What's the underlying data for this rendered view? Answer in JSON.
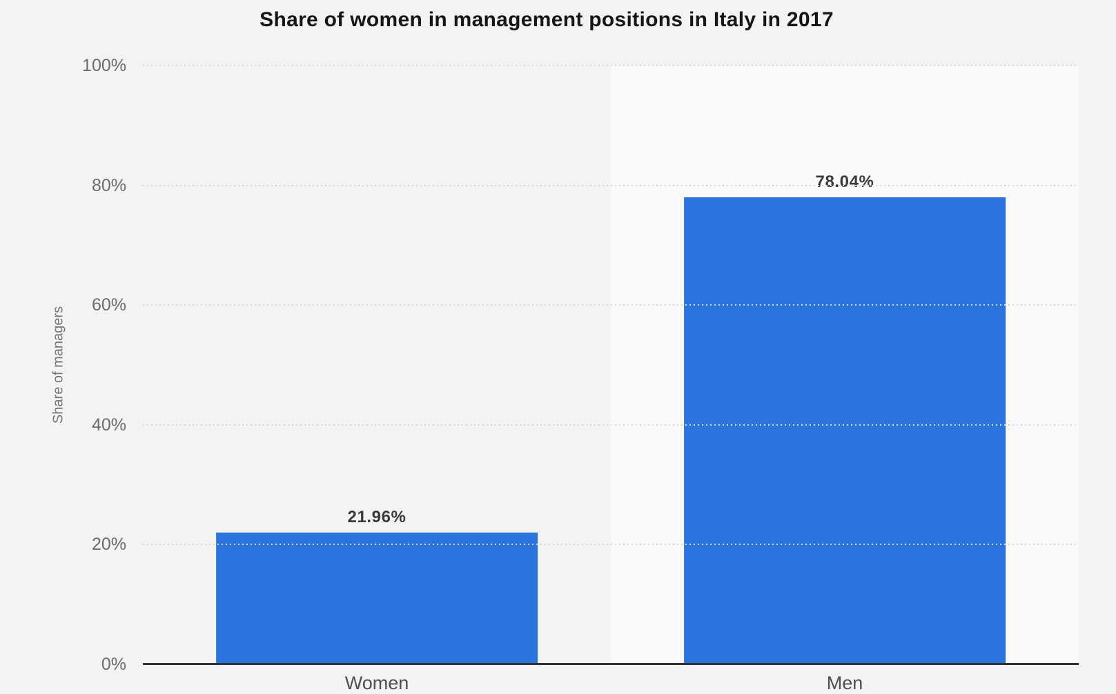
{
  "page": {
    "background": "#f3f3f3"
  },
  "chart_data": {
    "type": "bar",
    "title": "Share of women in management positions in Italy in 2017",
    "ylabel": "Share of managers",
    "xlabel": "",
    "categories": [
      "Women",
      "Men"
    ],
    "values": [
      21.96,
      78.04
    ],
    "value_labels": [
      "21.96%",
      "78.04%"
    ],
    "ylim": [
      0,
      100
    ],
    "ytick_values": [
      0,
      20,
      40,
      60,
      80,
      100
    ],
    "ytick_labels": [
      "0%",
      "20%",
      "40%",
      "60%",
      "80%",
      "100%"
    ],
    "grid": "horizontal-dotted",
    "legend": "none",
    "colors": {
      "bar": "#2b74dd",
      "band_women": "transparent",
      "band_men": "#fafafa",
      "gridline": "#d7d7d7",
      "axis_line": "#333333",
      "title_text": "#161616",
      "tick_text": "#6b6b6b",
      "axis_title_text": "#757575",
      "category_text": "#4f4f4f",
      "data_label_text": "#3a3a3a",
      "page_background": "#f3f3f3"
    }
  }
}
